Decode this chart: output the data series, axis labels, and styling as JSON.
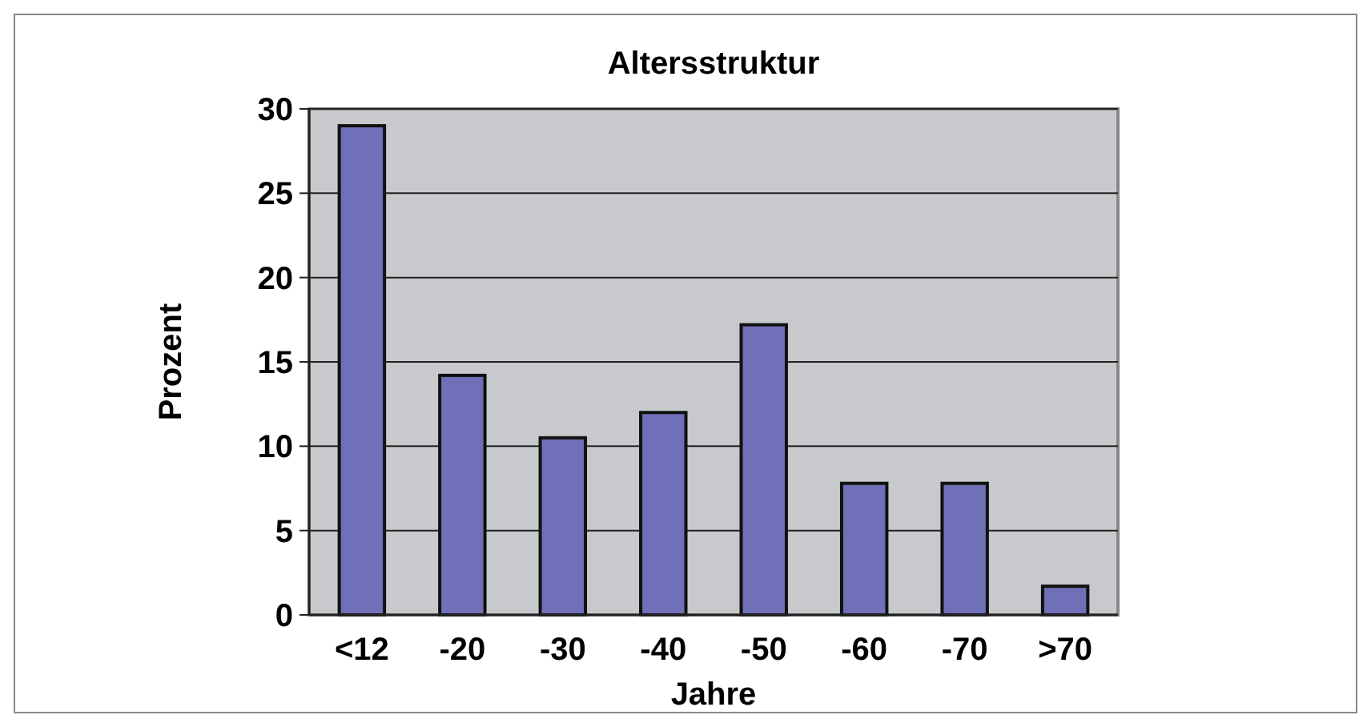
{
  "chart_data": {
    "type": "bar",
    "title": "Altersstruktur",
    "xlabel": "Jahre",
    "ylabel": "Prozent",
    "categories": [
      "<12",
      "-20",
      "-30",
      "-40",
      "-50",
      "-60",
      "-70",
      ">70"
    ],
    "values": [
      29,
      14.2,
      10.5,
      12,
      17.2,
      7.8,
      7.8,
      1.7
    ],
    "color": "#7070b8",
    "ylim": [
      0,
      30
    ],
    "yticks": [
      0,
      5,
      10,
      15,
      20,
      25,
      30
    ],
    "grid": "y"
  }
}
